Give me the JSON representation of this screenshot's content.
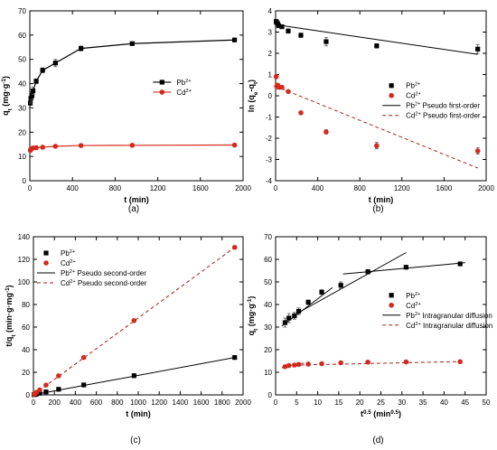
{
  "chart_data": [
    {
      "type": "scatter",
      "panel_label": "(a)",
      "xlabel_main": "t",
      "xlabel_unit": "(min)",
      "ylabel_main": "q",
      "ylabel_sub": "t",
      "ylabel_unit": "(mg·g",
      "xlim": [
        0,
        2000
      ],
      "ylim": [
        0,
        70
      ],
      "xticks": [
        "0",
        "400",
        "800",
        "1200",
        "1600",
        "2000"
      ],
      "yticks": [
        "0",
        "10",
        "20",
        "30",
        "40",
        "50",
        "60",
        "70"
      ],
      "legend": "right",
      "series": [
        {
          "name": "Pb",
          "sup": "2+",
          "color": "#000000",
          "marker": "square",
          "line": "solid",
          "x": [
            5,
            10,
            20,
            30,
            60,
            120,
            240,
            480,
            960,
            1920
          ],
          "y": [
            32,
            34,
            35,
            37,
            41,
            45.5,
            48.5,
            54.5,
            56.5,
            58
          ],
          "err": [
            2,
            2,
            1.5,
            1.5,
            1,
            1,
            1.5,
            1,
            0.5,
            0.5
          ]
        },
        {
          "name": "Cd",
          "sup": "2+",
          "color": "#d42a1e",
          "marker": "circle",
          "line": "solid",
          "x": [
            5,
            10,
            20,
            30,
            60,
            120,
            240,
            480,
            960,
            1920
          ],
          "y": [
            12.5,
            13,
            13.2,
            13.5,
            13.6,
            13.8,
            14.2,
            14.5,
            14.6,
            14.7
          ],
          "err": [
            0.5,
            0.5,
            0.5,
            0.5,
            0.5,
            0.5,
            0.5,
            0.5,
            0.5,
            0.5
          ]
        }
      ]
    },
    {
      "type": "scatter",
      "panel_label": "(b)",
      "xlabel_main": "t",
      "xlabel_unit": "(min)",
      "ylabel_main": "ln (q",
      "ylabel_sub1": "e",
      "ylabel_mid": "-q",
      "ylabel_sub2": "t",
      "ylabel_close": ")",
      "xlim": [
        0,
        2000
      ],
      "ylim": [
        -4,
        4
      ],
      "xticks": [
        "0",
        "400",
        "800",
        "1200",
        "1600",
        "2000"
      ],
      "yticks": [
        "-4",
        "-3",
        "-2",
        "-1",
        "0",
        "1",
        "2",
        "3",
        "4"
      ],
      "legend": "right",
      "series": [
        {
          "name": "Pb",
          "sup": "2+",
          "color": "#000000",
          "marker": "square",
          "x": [
            5,
            10,
            20,
            30,
            60,
            120,
            240,
            480,
            960,
            1920
          ],
          "y": [
            3.5,
            3.45,
            3.4,
            3.3,
            3.25,
            3.05,
            2.85,
            2.55,
            2.35,
            2.2
          ],
          "err": [
            0.05,
            0.05,
            0.05,
            0.05,
            0.05,
            0.1,
            0.1,
            0.2,
            0.1,
            0.2
          ]
        },
        {
          "name": "Cd",
          "sup": "2+",
          "color": "#d42a1e",
          "marker": "circle",
          "x": [
            5,
            10,
            20,
            30,
            60,
            120,
            240,
            480,
            960,
            1920
          ],
          "y": [
            0.9,
            0.45,
            0.5,
            0.4,
            0.4,
            0.2,
            -0.8,
            -1.7,
            -2.35,
            -2.6
          ],
          "err": [
            0.05,
            0.05,
            0.05,
            0.05,
            0.05,
            0.05,
            0.05,
            0.1,
            0.15,
            0.15
          ]
        }
      ],
      "fits": [
        {
          "name": "Pb",
          "sup": "2+",
          "label": "Pseudo first-order",
          "color": "#000000",
          "dash": false,
          "x": [
            0,
            1920
          ],
          "y": [
            3.35,
            1.95
          ]
        },
        {
          "name": "Cd",
          "sup": "2+",
          "label": "Pseudo first-order",
          "color": "#a0201a",
          "dash": true,
          "x": [
            0,
            1920
          ],
          "y": [
            0.45,
            -3.4
          ]
        }
      ]
    },
    {
      "type": "scatter",
      "panel_label": "(c)",
      "xlabel_main": "t",
      "xlabel_unit": "(min)",
      "ylabel_main": "t/q",
      "ylabel_sub": "t",
      "ylabel_unit": "(min·g·mg",
      "xlim": [
        0,
        2000
      ],
      "ylim": [
        0,
        140
      ],
      "xticks": [
        "0",
        "200",
        "400",
        "600",
        "800",
        "1000",
        "1200",
        "1400",
        "1600",
        "1800",
        "2000"
      ],
      "yticks": [
        "0",
        "20",
        "40",
        "60",
        "80",
        "100",
        "120",
        "140"
      ],
      "legend": "top-left",
      "series": [
        {
          "name": "Pb",
          "sup": "2+",
          "color": "#000000",
          "marker": "square",
          "x": [
            5,
            10,
            20,
            30,
            60,
            120,
            240,
            480,
            960,
            1920
          ],
          "y": [
            0.16,
            0.29,
            0.57,
            0.81,
            1.46,
            2.64,
            4.95,
            8.81,
            16.99,
            33.1
          ]
        },
        {
          "name": "Cd",
          "sup": "2+",
          "color": "#d42a1e",
          "marker": "circle",
          "x": [
            5,
            10,
            20,
            30,
            60,
            120,
            240,
            480,
            960,
            1920
          ],
          "y": [
            0.4,
            0.77,
            1.52,
            2.22,
            4.41,
            8.7,
            16.9,
            33.1,
            65.8,
            130.6
          ]
        }
      ],
      "fits": [
        {
          "name": "Pb",
          "sup": "2+",
          "label": "Pseudo second-order",
          "color": "#000000",
          "dash": false,
          "x": [
            0,
            1920
          ],
          "y": [
            0.1,
            33.1
          ]
        },
        {
          "name": "Cd",
          "sup": "2+",
          "label": "Pseudo second-order",
          "color": "#a0201a",
          "dash": true,
          "x": [
            0,
            1920
          ],
          "y": [
            0.1,
            130.6
          ]
        }
      ]
    },
    {
      "type": "scatter",
      "panel_label": "(d)",
      "xlabel_main": "t",
      "xlabel_sup": "0.5",
      "xlabel_unit": "(min",
      "ylabel_main": "q",
      "ylabel_sub": "t",
      "ylabel_unit": "(mg·g",
      "xlim": [
        0,
        50
      ],
      "ylim": [
        0,
        70
      ],
      "xticks": [
        "0",
        "5",
        "10",
        "15",
        "20",
        "25",
        "30",
        "35",
        "40",
        "45",
        "50"
      ],
      "yticks": [
        "0",
        "10",
        "20",
        "30",
        "40",
        "50",
        "60",
        "70"
      ],
      "legend": "right",
      "series": [
        {
          "name": "Pb",
          "sup": "2+",
          "color": "#000000",
          "marker": "square",
          "x": [
            2.24,
            3.16,
            4.47,
            5.48,
            7.75,
            10.95,
            15.49,
            21.91,
            30.98,
            43.82
          ],
          "y": [
            32,
            34,
            35,
            37,
            41,
            45.5,
            48.5,
            54.5,
            56.5,
            58
          ],
          "err": [
            2,
            2,
            1.5,
            1.5,
            1,
            1,
            1.5,
            1,
            0.5,
            0.5
          ]
        },
        {
          "name": "Cd",
          "sup": "2+",
          "color": "#d42a1e",
          "marker": "circle",
          "x": [
            2.24,
            3.16,
            4.47,
            5.48,
            7.75,
            10.95,
            15.49,
            21.91,
            30.98,
            43.82
          ],
          "y": [
            12.5,
            13,
            13.2,
            13.5,
            13.6,
            13.8,
            14.2,
            14.5,
            14.6,
            14.7
          ],
          "err": [
            0.5,
            0.5,
            0.5,
            0.5,
            0.5,
            0.5,
            0.5,
            0.5,
            0.5,
            0.5
          ]
        }
      ],
      "fits": [
        {
          "name": "Pb",
          "sup": "2+",
          "label": "Intragranular diffusion",
          "color": "#000000",
          "dash": false,
          "x": [
            1.5,
            13.5
          ],
          "y": [
            30.5,
            47.5
          ]
        },
        {
          "name": "Pb",
          "sup": "2+",
          "label": "Intragranular diffusion",
          "color": "#000000",
          "dash": false,
          "x": [
            6,
            31
          ],
          "y": [
            37,
            63
          ]
        },
        {
          "name": "Pb",
          "sup": "2+",
          "label": "Intragranular diffusion",
          "color": "#000000",
          "dash": false,
          "x": [
            16,
            45
          ],
          "y": [
            53.5,
            58.5
          ]
        },
        {
          "name": "Cd",
          "sup": "2+",
          "label": "Intragranular diffusion",
          "color": "#a0201a",
          "dash": true,
          "x": [
            1.5,
            8
          ],
          "y": [
            12,
            14.6
          ]
        },
        {
          "name": "Cd",
          "sup": "2+",
          "label": "Intragranular diffusion",
          "color": "#a0201a",
          "dash": true,
          "x": [
            3,
            45
          ],
          "y": [
            13.1,
            14.8
          ]
        }
      ]
    }
  ]
}
